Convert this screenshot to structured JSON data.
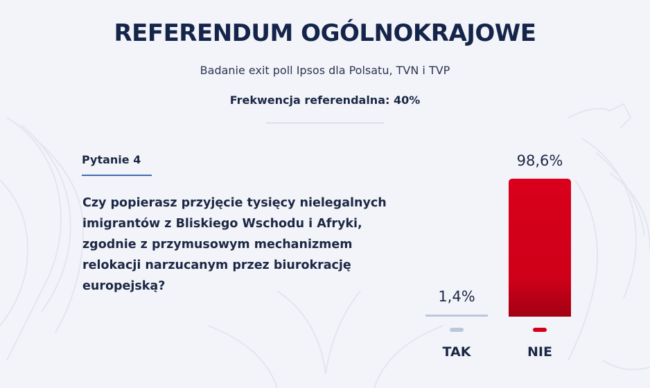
{
  "header": {
    "title": "REFERENDUM OGÓLNOKRAJOWE",
    "subtitle": "Badanie exit poll Ipsos dla Polsatu, TVN i TVP",
    "turnout": "Frekwencja referendalna: 40%"
  },
  "question": {
    "number": "Pytanie 4",
    "text": "Czy popierasz przyjęcie tysięcy nielegalnych imigrantów z Bliskiego Wschodu i Afryki, zgodnie z przymusowym mechanizmem relokacji narzucanym przez biurokrację europejską?"
  },
  "chart_data": {
    "type": "bar",
    "categories": [
      "TAK",
      "NIE"
    ],
    "values": [
      1.4,
      98.6
    ],
    "value_labels": [
      "1,4%",
      "98,6%"
    ],
    "colors": [
      "#bcc7dc",
      "#d3001a"
    ],
    "ylim": [
      0,
      100
    ],
    "grid": false,
    "title": "",
    "xlabel": "",
    "ylabel": ""
  }
}
